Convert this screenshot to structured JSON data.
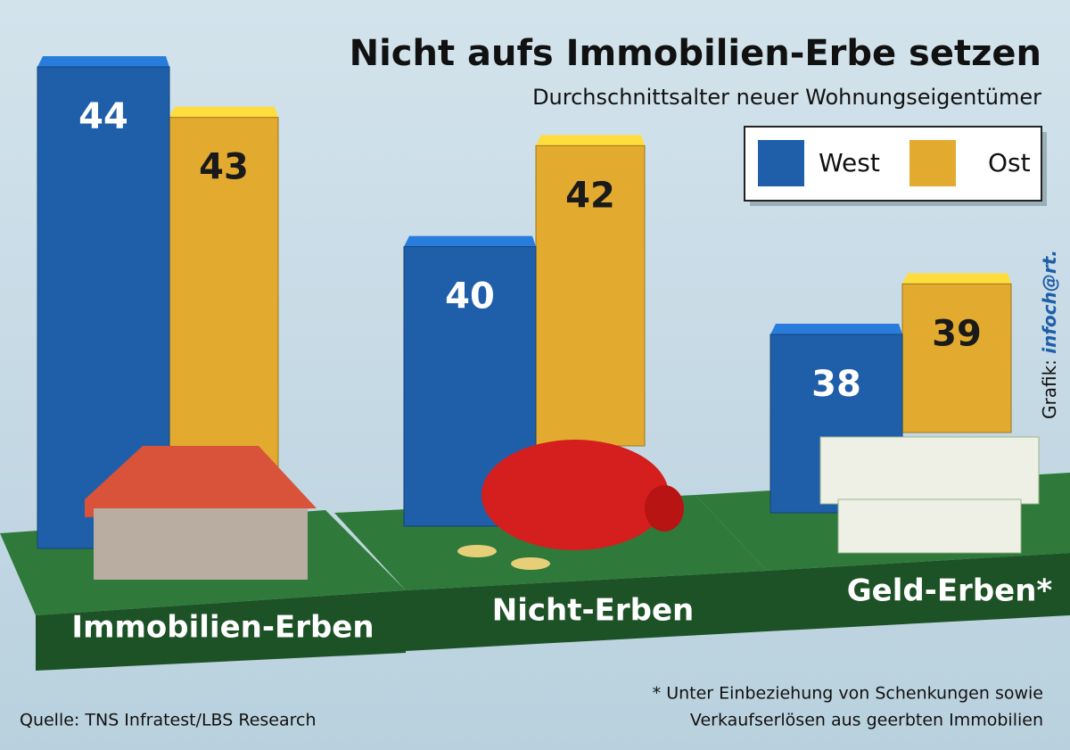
{
  "chart_data": {
    "type": "bar",
    "title": "Nicht aufs Immobilien-Erbe setzen",
    "subtitle": "Durchschnittsalter neuer Wohnungseigentümer",
    "categories": [
      "Immobilien-Erben",
      "Nicht-Erben",
      "Geld-Erben*"
    ],
    "series": [
      {
        "name": "West",
        "color": "#1f5fa9",
        "values": [
          44,
          40,
          38
        ]
      },
      {
        "name": "Ost",
        "color": "#e2aa2e",
        "values": [
          43,
          42,
          39
        ]
      }
    ],
    "footnote": [
      "* Unter Einbeziehung von Schenkungen sowie",
      "Verkaufserlösen aus geerbten Immobilien"
    ],
    "source": "Quelle: TNS Infratest/LBS Research",
    "credit": {
      "label": "Grafik:",
      "brand": "infoch@rt."
    }
  }
}
